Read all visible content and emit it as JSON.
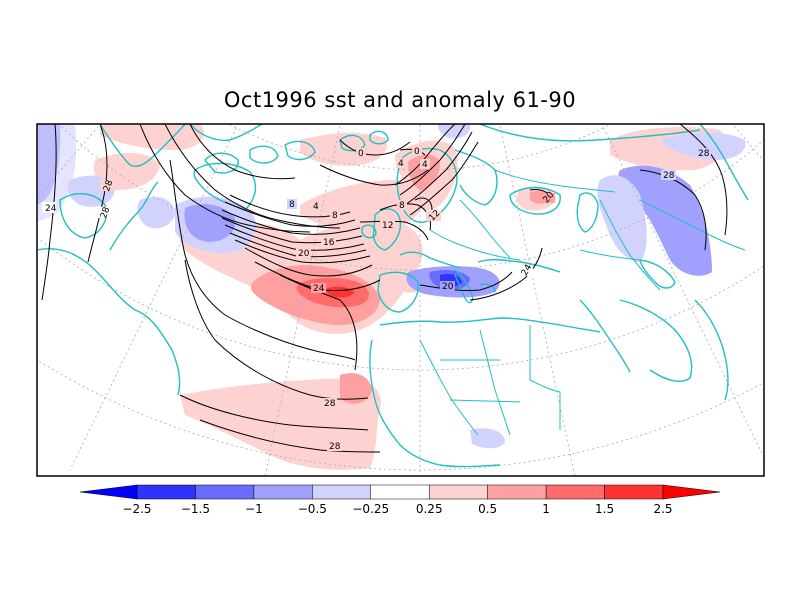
{
  "title": "Oct1996 sst and anomaly 61-90",
  "colors": {
    "coast": "#22c0c0",
    "contour": "#000000",
    "grid": "#aaaaaa",
    "frame": "#000000"
  },
  "colorbar": {
    "labels": [
      "−2.5",
      "−1.5",
      "−1",
      "−0.5",
      "−0.25",
      "0.25",
      "0.5",
      "1",
      "1.5",
      "2.5"
    ],
    "bins": [
      "#0000ff",
      "#3232ff",
      "#6a6aff",
      "#a0a0ff",
      "#d2d2ff",
      "#ffffff",
      "#ffd2d2",
      "#ffa0a0",
      "#ff6a6a",
      "#ff3232",
      "#ff0000"
    ]
  },
  "contour_labels": [
    "24",
    "28",
    "28",
    "4",
    "0",
    "4",
    "8",
    "4",
    "8",
    "12",
    "12",
    "16",
    "20",
    "24",
    "8",
    "20",
    "24",
    "28",
    "28",
    "28",
    "28",
    "20",
    "0"
  ]
}
